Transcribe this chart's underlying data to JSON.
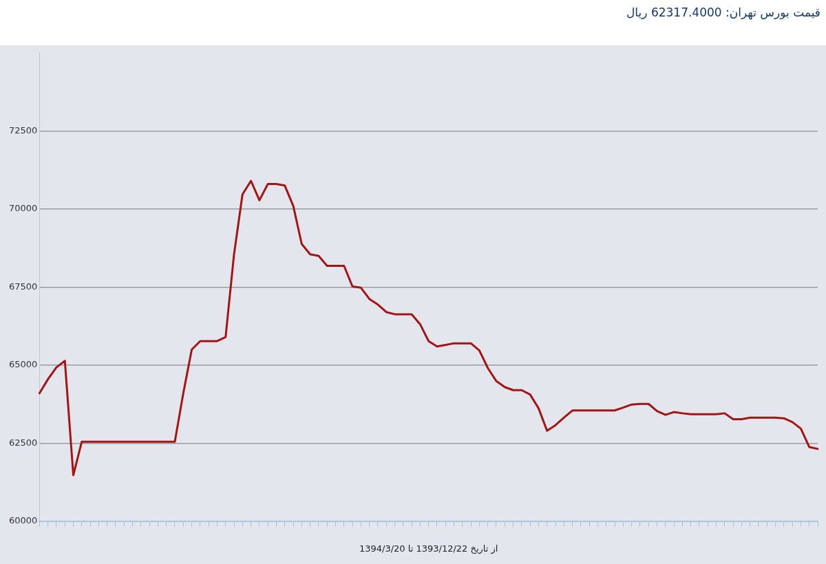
{
  "chart_data": {
    "type": "line",
    "title": "قیمت بورس تهران:  62317.4000 ریال",
    "xlabel": "از تاریخ 1393/12/22 تا 1394/3/20",
    "categories": [
      null,
      null,
      null,
      null,
      null,
      null,
      null,
      null,
      null,
      null,
      null,
      null,
      null,
      null,
      null,
      null,
      null,
      null,
      null,
      null,
      null,
      null,
      null,
      null,
      null,
      null,
      null,
      null,
      null,
      null,
      null,
      null,
      null,
      null,
      null,
      null,
      null,
      null,
      null,
      null,
      null,
      null,
      null,
      null,
      null,
      null,
      null,
      null,
      null,
      null,
      null,
      null,
      null,
      null,
      null,
      null,
      null,
      null,
      null,
      null,
      null,
      null,
      null,
      null,
      null,
      null,
      null,
      null,
      null,
      null,
      null,
      null,
      null,
      null,
      null,
      null,
      null,
      null,
      null,
      null,
      null,
      null,
      null,
      null,
      null,
      null,
      null,
      null,
      null,
      null,
      null,
      null,
      null
    ],
    "series": [
      {
        "color": "#a31515",
        "values": [
          64100,
          64550,
          64930,
          65140,
          61480,
          62550,
          62550,
          62550,
          62550,
          62550,
          62550,
          62550,
          62550,
          62550,
          62550,
          62550,
          62550,
          64100,
          65500,
          65770,
          65770,
          65770,
          65900,
          68550,
          70470,
          70900,
          70280,
          70800,
          70800,
          70750,
          70100,
          68880,
          68550,
          68500,
          68180,
          68180,
          68180,
          67520,
          67480,
          67120,
          66940,
          66700,
          66630,
          66630,
          66630,
          66310,
          65770,
          65600,
          65650,
          65700,
          65700,
          65700,
          65470,
          64910,
          64490,
          64300,
          64200,
          64200,
          64060,
          63620,
          62900,
          63080,
          63320,
          63550,
          63550,
          63550,
          63550,
          63550,
          63550,
          63640,
          63740,
          63760,
          63760,
          63530,
          63410,
          63500,
          63460,
          63430,
          63430,
          63430,
          63430,
          63460,
          63270,
          63270,
          63320,
          63320,
          63320,
          63320,
          63300,
          63180,
          62970,
          62380,
          62320
        ]
      }
    ],
    "ylim": [
      60000,
      75000
    ],
    "yticks": [
      60000,
      62500,
      65000,
      67500,
      70000,
      72500
    ],
    "grid": "y",
    "legend": false,
    "marker": "none",
    "line_style": "solid"
  }
}
